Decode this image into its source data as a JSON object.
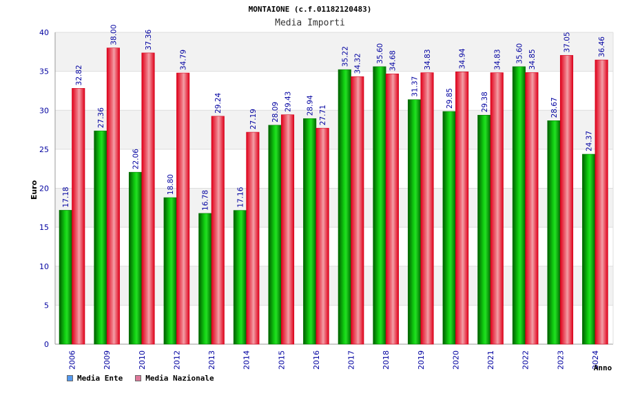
{
  "chart_data": {
    "type": "bar",
    "title": "MONTAIONE (c.f.01182120483)",
    "subtitle": "Media Importi",
    "xlabel": "Anno",
    "ylabel": "Euro",
    "ylim": [
      0,
      40
    ],
    "yticks": [
      0,
      5,
      10,
      15,
      20,
      25,
      30,
      35,
      40
    ],
    "grid": true,
    "categories": [
      "2006",
      "2009",
      "2010",
      "2012",
      "2013",
      "2014",
      "2015",
      "2016",
      "2017",
      "2018",
      "2019",
      "2020",
      "2021",
      "2022",
      "2023",
      "2024"
    ],
    "series": [
      {
        "name": "Media Ente",
        "color": "#00b400",
        "legend_color": "#5599ee",
        "values": [
          17.18,
          27.36,
          22.06,
          18.8,
          16.78,
          17.16,
          28.09,
          28.94,
          35.22,
          35.6,
          31.37,
          29.85,
          29.38,
          35.6,
          28.67,
          24.37
        ],
        "labels": [
          "17.18",
          "27.36",
          "22.06",
          "18.80",
          "16.78",
          "17.16",
          "28.09",
          "28.94",
          "35.22",
          "35.60",
          "31.37",
          "29.85",
          "29.38",
          "35.60",
          "28.67",
          "24.37"
        ]
      },
      {
        "name": "Media Nazionale",
        "color": "#e8101e",
        "legend_color": "#dd7799",
        "values": [
          32.82,
          38.0,
          37.36,
          34.79,
          29.24,
          27.19,
          29.43,
          27.71,
          34.32,
          34.68,
          34.83,
          34.94,
          34.83,
          34.85,
          37.05,
          36.46
        ],
        "labels": [
          "32.82",
          "38.00",
          "37.36",
          "34.79",
          "29.24",
          "27.19",
          "29.43",
          "27.71",
          "34.32",
          "34.68",
          "34.83",
          "34.94",
          "34.83",
          "34.85",
          "37.05",
          "36.46"
        ]
      }
    ],
    "legend_position": "bottom-left"
  }
}
